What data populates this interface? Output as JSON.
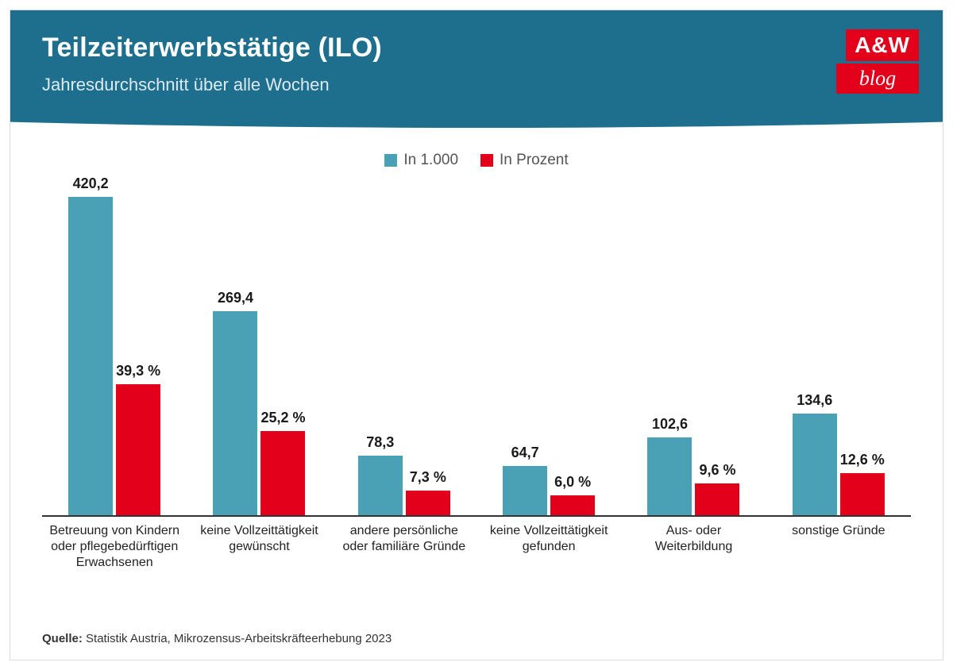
{
  "header": {
    "title": "Teilzeiterwerbstätige (ILO)",
    "subtitle": "Jahresdurchschnitt über alle Wochen",
    "bg_color": "#1e6f8e",
    "title_color": "#ffffff",
    "subtitle_color": "#dceaf0"
  },
  "logo": {
    "line1": "A&W",
    "line2": "blog",
    "bg_color": "#e2001a",
    "text_color": "#ffffff"
  },
  "legend": {
    "series1": {
      "label": "In 1.000",
      "color": "#4aa0b5"
    },
    "series2": {
      "label": "In Prozent",
      "color": "#e2001a"
    }
  },
  "chart": {
    "type": "grouped-bar",
    "value_max": 440,
    "percent_max": 100,
    "axis_color": "#333333",
    "label_fontsize": 18,
    "label_fontweight": 700,
    "categories": [
      {
        "label": "Betreuung von Kindern oder pflegebedürftigen Erwachsenen",
        "value": 420.2,
        "value_label": "420,2",
        "percent": 39.3,
        "percent_label": "39,3 %"
      },
      {
        "label": "keine Vollzeittätigkeit gewünscht",
        "value": 269.4,
        "value_label": "269,4",
        "percent": 25.2,
        "percent_label": "25,2 %"
      },
      {
        "label": "andere persönliche oder familiäre Gründe",
        "value": 78.3,
        "value_label": "78,3",
        "percent": 7.3,
        "percent_label": "7,3 %"
      },
      {
        "label": "keine Vollzeittätigkeit gefunden",
        "value": 64.7,
        "value_label": "64,7",
        "percent": 6.0,
        "percent_label": "6,0 %"
      },
      {
        "label": "Aus- oder Weiterbildung",
        "value": 102.6,
        "value_label": "102,6",
        "percent": 9.6,
        "percent_label": "9,6 %"
      },
      {
        "label": "sonstige Gründe",
        "value": 134.6,
        "value_label": "134,6",
        "percent": 12.6,
        "percent_label": "12,6 %"
      }
    ]
  },
  "source": {
    "prefix": "Quelle: ",
    "text": "Statistik Austria, Mikrozensus-Arbeitskräfteerhebung 2023"
  }
}
